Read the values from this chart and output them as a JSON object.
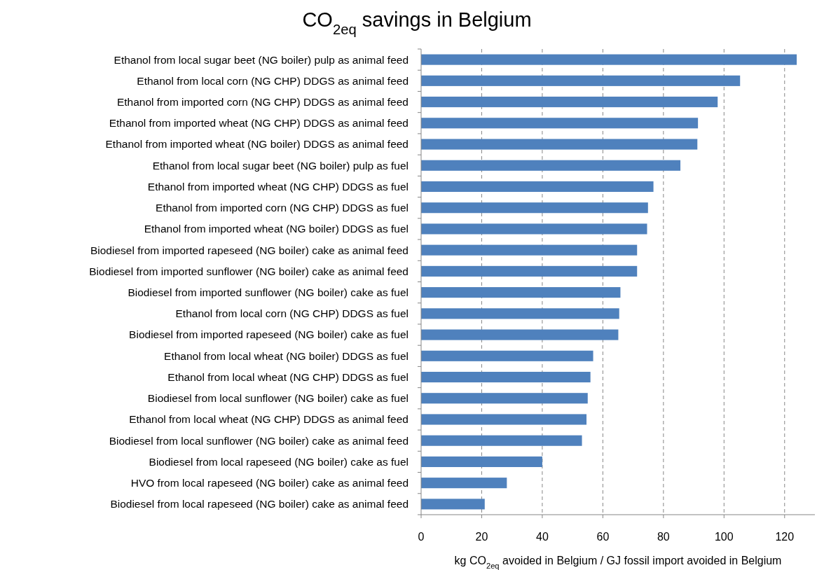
{
  "chart_data": {
    "type": "bar",
    "orientation": "horizontal",
    "title": "CO$_{2eq}$ savings in Belgium",
    "xlabel": "kg CO$_{2eq}$ avoided in Belgium / GJ fossil import avoided in Belgium",
    "categories": [
      "Ethanol from local sugar beet (NG boiler) pulp as animal feed",
      "Ethanol from local corn (NG CHP) DDGS as animal feed",
      "Ethanol from imported corn (NG CHP) DDGS as animal feed",
      "Ethanol from imported wheat (NG CHP) DDGS as animal feed",
      "Ethanol from imported wheat (NG boiler) DDGS as animal feed",
      "Ethanol from local sugar beet (NG boiler) pulp as fuel",
      "Ethanol from imported wheat (NG CHP) DDGS as fuel",
      "Ethanol from imported corn (NG CHP) DDGS as fuel",
      "Ethanol from imported wheat (NG boiler) DDGS as fuel",
      "Biodiesel from imported rapeseed (NG boiler) cake as animal feed",
      "Biodiesel from imported sunflower (NG boiler) cake as animal feed",
      "Biodiesel from imported sunflower (NG boiler) cake as fuel",
      "Ethanol from local corn (NG CHP) DDGS as fuel",
      "Biodiesel from imported rapeseed (NG boiler) cake as fuel",
      "Ethanol from local wheat (NG boiler) DDGS as fuel",
      "Ethanol from local wheat (NG CHP) DDGS as fuel",
      "Biodiesel from local sunflower (NG boiler) cake as fuel",
      "Ethanol from local wheat (NG CHP) DDGS as animal feed",
      "Biodiesel from local sunflower (NG boiler) cake as animal feed",
      "Biodiesel from local rapeseed (NG boiler) cake as fuel",
      "HVO from local rapeseed (NG boiler) cake as animal feed",
      "Biodiesel from local rapeseed (NG boiler) cake as animal feed"
    ],
    "values": [
      124.0,
      105.3,
      97.9,
      91.4,
      91.2,
      85.6,
      76.7,
      74.9,
      74.6,
      71.3,
      71.3,
      65.8,
      65.4,
      65.1,
      56.8,
      55.9,
      55.0,
      54.6,
      53.1,
      40.0,
      28.3,
      21.0
    ],
    "color": "#4f81bd",
    "xlim": [
      0,
      130
    ],
    "xticks": [
      0,
      20,
      40,
      60,
      80,
      100,
      120
    ],
    "grid": "x",
    "line_style": "dashed"
  }
}
